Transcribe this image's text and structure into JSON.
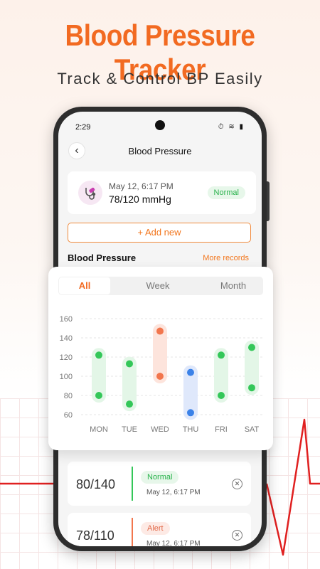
{
  "promo": {
    "title": "Blood Pressure Tracker",
    "subtitle": "Track & Control BP Easily"
  },
  "status_bar": {
    "time": "2:29",
    "icons": "⏱ ≋ ▮"
  },
  "nav": {
    "back_icon": "‹",
    "title": "Blood Pressure"
  },
  "latest_record": {
    "icon": "stethoscope-icon",
    "date": "May 12, 6:17 PM",
    "value": "78/120 mmHg",
    "status": "Normal"
  },
  "add_button": {
    "label": "+ Add new"
  },
  "section": {
    "title": "Blood Pressure",
    "more_label": "More records"
  },
  "chart": {
    "tabs": [
      "All",
      "Week",
      "Month"
    ],
    "active_tab": "All"
  },
  "chart_data": {
    "type": "range",
    "categories": [
      "MON",
      "TUE",
      "WED",
      "THU",
      "FRI",
      "SAT"
    ],
    "y_ticks": [
      160,
      140,
      120,
      100,
      80,
      60
    ],
    "ylim": [
      60,
      160
    ],
    "series": [
      {
        "low": 80,
        "high": 122,
        "status": "normal"
      },
      {
        "low": 71,
        "high": 113,
        "status": "normal"
      },
      {
        "low": 100,
        "high": 147,
        "status": "alert"
      },
      {
        "low": 62,
        "high": 104,
        "status": "low"
      },
      {
        "low": 80,
        "high": 122,
        "status": "normal"
      },
      {
        "low": 88,
        "high": 130,
        "status": "normal"
      }
    ],
    "colors": {
      "normal": "#34c759",
      "alert": "#f2764d",
      "low": "#3b82e8"
    }
  },
  "records": [
    {
      "value": "80/140",
      "status": "Normal",
      "status_type": "normal",
      "date": "May 12, 6:17 PM"
    },
    {
      "value": "78/110",
      "status": "Alert",
      "status_type": "alert",
      "date": "May 12, 6:17 PM"
    }
  ],
  "remove_icon": "✕",
  "colors": {
    "accent": "#f26a21",
    "normal": "#28b24b",
    "alert": "#e26a4a"
  }
}
